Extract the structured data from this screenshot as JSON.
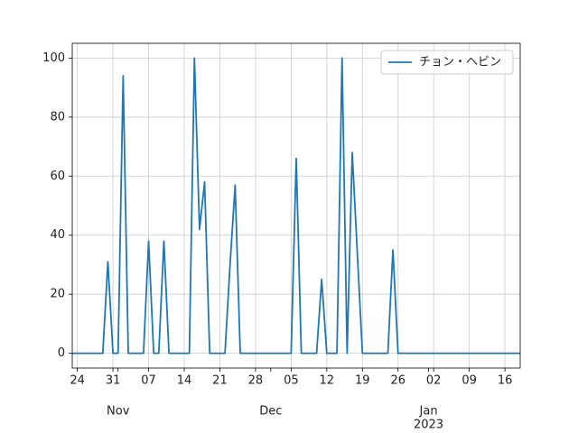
{
  "chart_data": {
    "type": "line",
    "x": [
      "2022-10-23",
      "2022-10-24",
      "2022-10-25",
      "2022-10-26",
      "2022-10-27",
      "2022-10-28",
      "2022-10-29",
      "2022-10-30",
      "2022-10-31",
      "2022-11-01",
      "2022-11-02",
      "2022-11-03",
      "2022-11-04",
      "2022-11-05",
      "2022-11-06",
      "2022-11-07",
      "2022-11-08",
      "2022-11-09",
      "2022-11-10",
      "2022-11-11",
      "2022-11-12",
      "2022-11-13",
      "2022-11-14",
      "2022-11-15",
      "2022-11-16",
      "2022-11-17",
      "2022-11-18",
      "2022-11-19",
      "2022-11-20",
      "2022-11-21",
      "2022-11-22",
      "2022-11-23",
      "2022-11-24",
      "2022-11-25",
      "2022-11-26",
      "2022-11-27",
      "2022-11-28",
      "2022-11-29",
      "2022-11-30",
      "2022-12-01",
      "2022-12-02",
      "2022-12-03",
      "2022-12-04",
      "2022-12-05",
      "2022-12-06",
      "2022-12-07",
      "2022-12-08",
      "2022-12-09",
      "2022-12-10",
      "2022-12-11",
      "2022-12-12",
      "2022-12-13",
      "2022-12-14",
      "2022-12-15",
      "2022-12-16",
      "2022-12-17",
      "2022-12-18",
      "2022-12-19",
      "2022-12-20",
      "2022-12-21",
      "2022-12-22",
      "2022-12-23",
      "2022-12-24",
      "2022-12-25",
      "2022-12-26",
      "2022-12-27",
      "2022-12-28",
      "2022-12-29",
      "2022-12-30",
      "2022-12-31",
      "2023-01-01",
      "2023-01-02",
      "2023-01-03",
      "2023-01-04",
      "2023-01-05",
      "2023-01-06",
      "2023-01-07",
      "2023-01-08",
      "2023-01-09",
      "2023-01-10",
      "2023-01-11",
      "2023-01-12",
      "2023-01-13",
      "2023-01-14",
      "2023-01-15",
      "2023-01-16",
      "2023-01-17",
      "2023-01-18",
      "2023-01-19"
    ],
    "series": [
      {
        "name": "チョン・ヘビン",
        "color": "#1f77b4",
        "values": [
          0,
          0,
          0,
          0,
          0,
          0,
          0,
          31,
          0,
          0,
          94,
          0,
          0,
          0,
          0,
          38,
          0,
          0,
          38,
          0,
          0,
          0,
          0,
          0,
          100,
          42,
          58,
          0,
          0,
          0,
          0,
          30,
          57,
          0,
          0,
          0,
          0,
          0,
          0,
          0,
          0,
          0,
          0,
          0,
          66,
          0,
          0,
          0,
          0,
          25,
          0,
          0,
          0,
          100,
          0,
          68,
          34,
          0,
          0,
          0,
          0,
          0,
          0,
          35,
          0,
          0,
          0,
          0,
          0,
          0,
          0,
          0,
          0,
          0,
          0,
          0,
          0,
          0,
          0,
          0,
          0,
          0,
          0,
          0,
          0,
          0,
          0,
          0,
          0
        ]
      }
    ],
    "xlim": [
      "2022-10-23",
      "2023-01-19"
    ],
    "xticks": [
      {
        "value": "2022-10-24",
        "label": "24"
      },
      {
        "value": "2022-10-31",
        "label": "31"
      },
      {
        "value": "2022-11-07",
        "label": "07"
      },
      {
        "value": "2022-11-14",
        "label": "14"
      },
      {
        "value": "2022-11-21",
        "label": "21"
      },
      {
        "value": "2022-11-28",
        "label": "28"
      },
      {
        "value": "2022-12-05",
        "label": "05"
      },
      {
        "value": "2022-12-12",
        "label": "12"
      },
      {
        "value": "2022-12-19",
        "label": "19"
      },
      {
        "value": "2022-12-26",
        "label": "26"
      },
      {
        "value": "2023-01-02",
        "label": "02"
      },
      {
        "value": "2023-01-09",
        "label": "09"
      },
      {
        "value": "2023-01-16",
        "label": "16"
      }
    ],
    "x_month_ticks": [
      {
        "value": "2022-11-01",
        "label": "Nov"
      },
      {
        "value": "2022-12-01",
        "label": "Dec"
      },
      {
        "value": "2023-01-01",
        "label": "Jan"
      }
    ],
    "x_year_ticks": [
      {
        "value": "2023-01-01",
        "label": "2023"
      }
    ],
    "ylim": [
      -5,
      105
    ],
    "yticks": [
      0,
      20,
      40,
      60,
      80,
      100
    ],
    "grid": true,
    "legend": "upper right"
  }
}
